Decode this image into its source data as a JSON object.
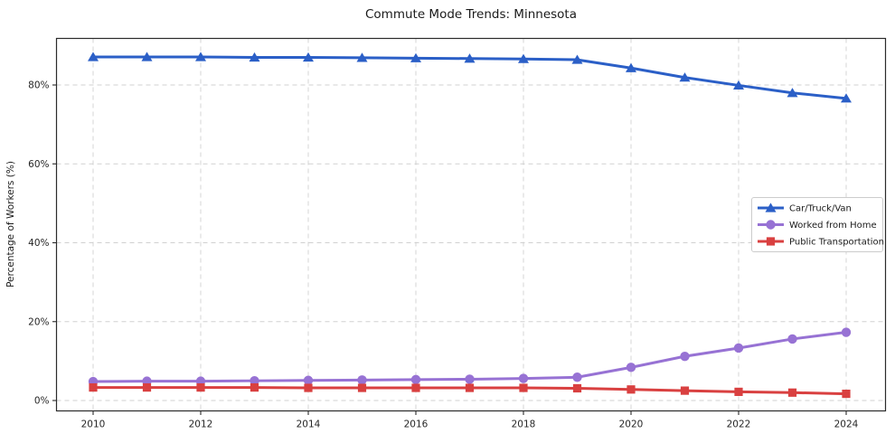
{
  "chart_data": {
    "type": "line",
    "title": "Commute Mode Trends: Minnesota",
    "xlabel": "",
    "ylabel": "Percentage of Workers (%)",
    "x": [
      2010,
      2011,
      2012,
      2013,
      2014,
      2015,
      2016,
      2017,
      2018,
      2019,
      2020,
      2021,
      2022,
      2023,
      2024
    ],
    "x_ticks": [
      2010,
      2012,
      2014,
      2016,
      2018,
      2020,
      2022,
      2024
    ],
    "x_tick_labels": [
      "2010",
      "2012",
      "2014",
      "2016",
      "2018",
      "2020",
      "2022",
      "2024"
    ],
    "y_ticks": [
      0,
      20,
      40,
      60,
      80
    ],
    "y_tick_labels": [
      "0%",
      "20%",
      "40%",
      "60%",
      "80%"
    ],
    "xlim": [
      2009.32,
      2024.73
    ],
    "ylim": [
      -2.6,
      91.8
    ],
    "grid": true,
    "grid_style": "dashed",
    "legend_position": "center right",
    "series": [
      {
        "name": "Car/Truck/Van",
        "color": "#2b5fc7",
        "marker": "triangle",
        "values": [
          87.1,
          87.1,
          87.1,
          87.0,
          87.0,
          86.9,
          86.8,
          86.7,
          86.6,
          86.4,
          84.3,
          81.9,
          79.9,
          78.0,
          76.6
        ]
      },
      {
        "name": "Worked from Home",
        "color": "#9772d4",
        "marker": "circle",
        "values": [
          4.8,
          4.9,
          4.9,
          5.0,
          5.1,
          5.2,
          5.3,
          5.4,
          5.6,
          5.9,
          8.4,
          11.2,
          13.3,
          15.6,
          17.3
        ]
      },
      {
        "name": "Public Transportation",
        "color": "#d94040",
        "marker": "square",
        "values": [
          3.3,
          3.3,
          3.3,
          3.3,
          3.2,
          3.2,
          3.2,
          3.2,
          3.2,
          3.1,
          2.8,
          2.5,
          2.2,
          2.0,
          1.7
        ]
      }
    ]
  }
}
